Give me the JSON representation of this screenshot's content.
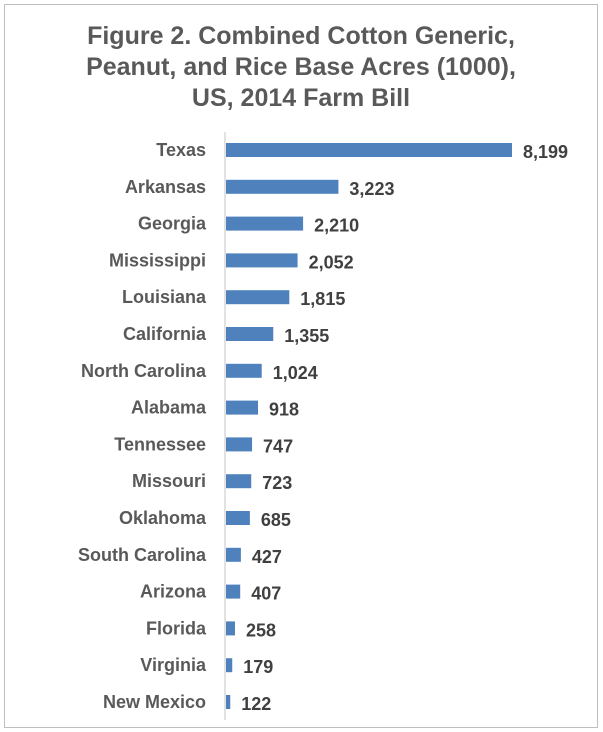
{
  "chart_data": {
    "type": "bar",
    "orientation": "horizontal",
    "title_lines": [
      "Figure 2. Combined Cotton Generic,",
      "Peanut, and Rice Base Acres (1000),",
      "US, 2014 Farm Bill"
    ],
    "categories": [
      "Texas",
      "Arkansas",
      "Georgia",
      "Mississippi",
      "Louisiana",
      "California",
      "North Carolina",
      "Alabama",
      "Tennessee",
      "Missouri",
      "Oklahoma",
      "South Carolina",
      "Arizona",
      "Florida",
      "Virginia",
      "New Mexico"
    ],
    "values": [
      8199,
      3223,
      2210,
      2052,
      1815,
      1355,
      1024,
      918,
      747,
      723,
      685,
      427,
      407,
      258,
      179,
      122
    ],
    "value_labels": [
      "8,199",
      "3,223",
      "2,210",
      "2,052",
      "1,815",
      "1,355",
      "1,024",
      "918",
      "747",
      "723",
      "685",
      "427",
      "407",
      "258",
      "179",
      "122"
    ],
    "xlim": [
      0,
      8199
    ],
    "bar_color": "#4f81bd",
    "axis_color": "#d9d9d9",
    "grid": false,
    "legend": "none"
  }
}
